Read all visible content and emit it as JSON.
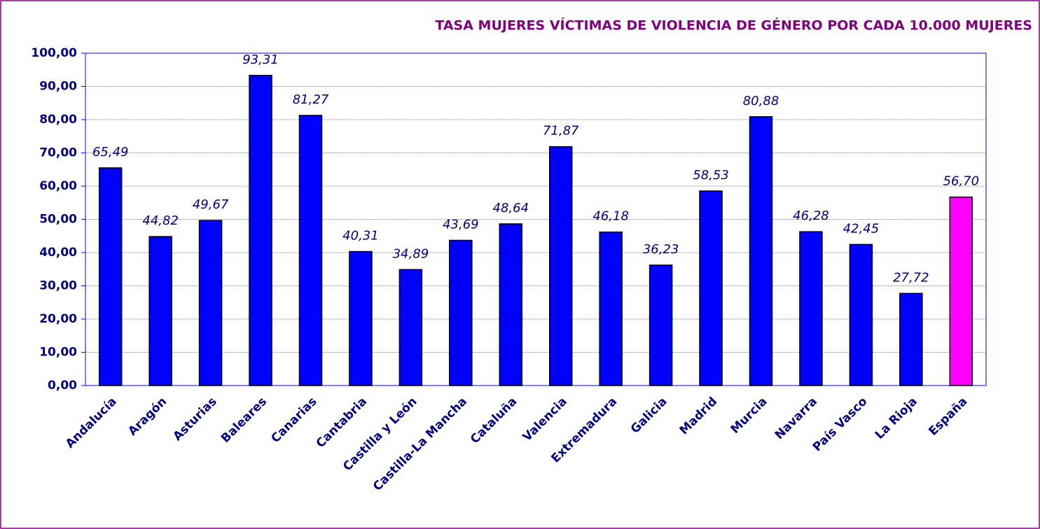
{
  "chart_data": {
    "type": "bar",
    "title": "TASA MUJERES VÍCTIMAS DE VIOLENCIA DE GÉNERO POR CADA 10.000 MUJERES",
    "categories": [
      "Andalucía",
      "Aragón",
      "Asturias",
      "Baleares",
      "Canarias",
      "Cantabria",
      "Castilla y León",
      "Castilla-La Mancha",
      "Cataluña",
      "Valencia",
      "Extremadura",
      "Galicia",
      "Madrid",
      "Murcia",
      "Navarra",
      "País Vasco",
      "La Rioja",
      "España"
    ],
    "values": [
      65.49,
      44.82,
      49.67,
      93.31,
      81.27,
      40.31,
      34.89,
      43.69,
      48.64,
      71.87,
      46.18,
      36.23,
      58.53,
      80.88,
      46.28,
      42.45,
      27.72,
      56.7
    ],
    "value_labels": [
      "65,49",
      "44,82",
      "49,67",
      "93,31",
      "81,27",
      "40,31",
      "34,89",
      "43,69",
      "48,64",
      "71,87",
      "46,18",
      "36,23",
      "58,53",
      "80,88",
      "46,28",
      "42,45",
      "27,72",
      "56,70"
    ],
    "colors": [
      "#0000ff",
      "#0000ff",
      "#0000ff",
      "#0000ff",
      "#0000ff",
      "#0000ff",
      "#0000ff",
      "#0000ff",
      "#0000ff",
      "#0000ff",
      "#0000ff",
      "#0000ff",
      "#0000ff",
      "#0000ff",
      "#0000ff",
      "#0000ff",
      "#0000ff",
      "#ff00ff"
    ],
    "ylim": [
      0,
      100
    ],
    "yticks": [
      {
        "value": 0,
        "label": "0,00"
      },
      {
        "value": 10,
        "label": "10,00"
      },
      {
        "value": 20,
        "label": "20,00"
      },
      {
        "value": 30,
        "label": "30,00"
      },
      {
        "value": 40,
        "label": "40,00"
      },
      {
        "value": 50,
        "label": "50,00"
      },
      {
        "value": 60,
        "label": "60,00"
      },
      {
        "value": 70,
        "label": "70,00"
      },
      {
        "value": 80,
        "label": "80,00"
      },
      {
        "value": 90,
        "label": "90,00"
      },
      {
        "value": 100,
        "label": "100,00"
      }
    ],
    "grid": true
  }
}
